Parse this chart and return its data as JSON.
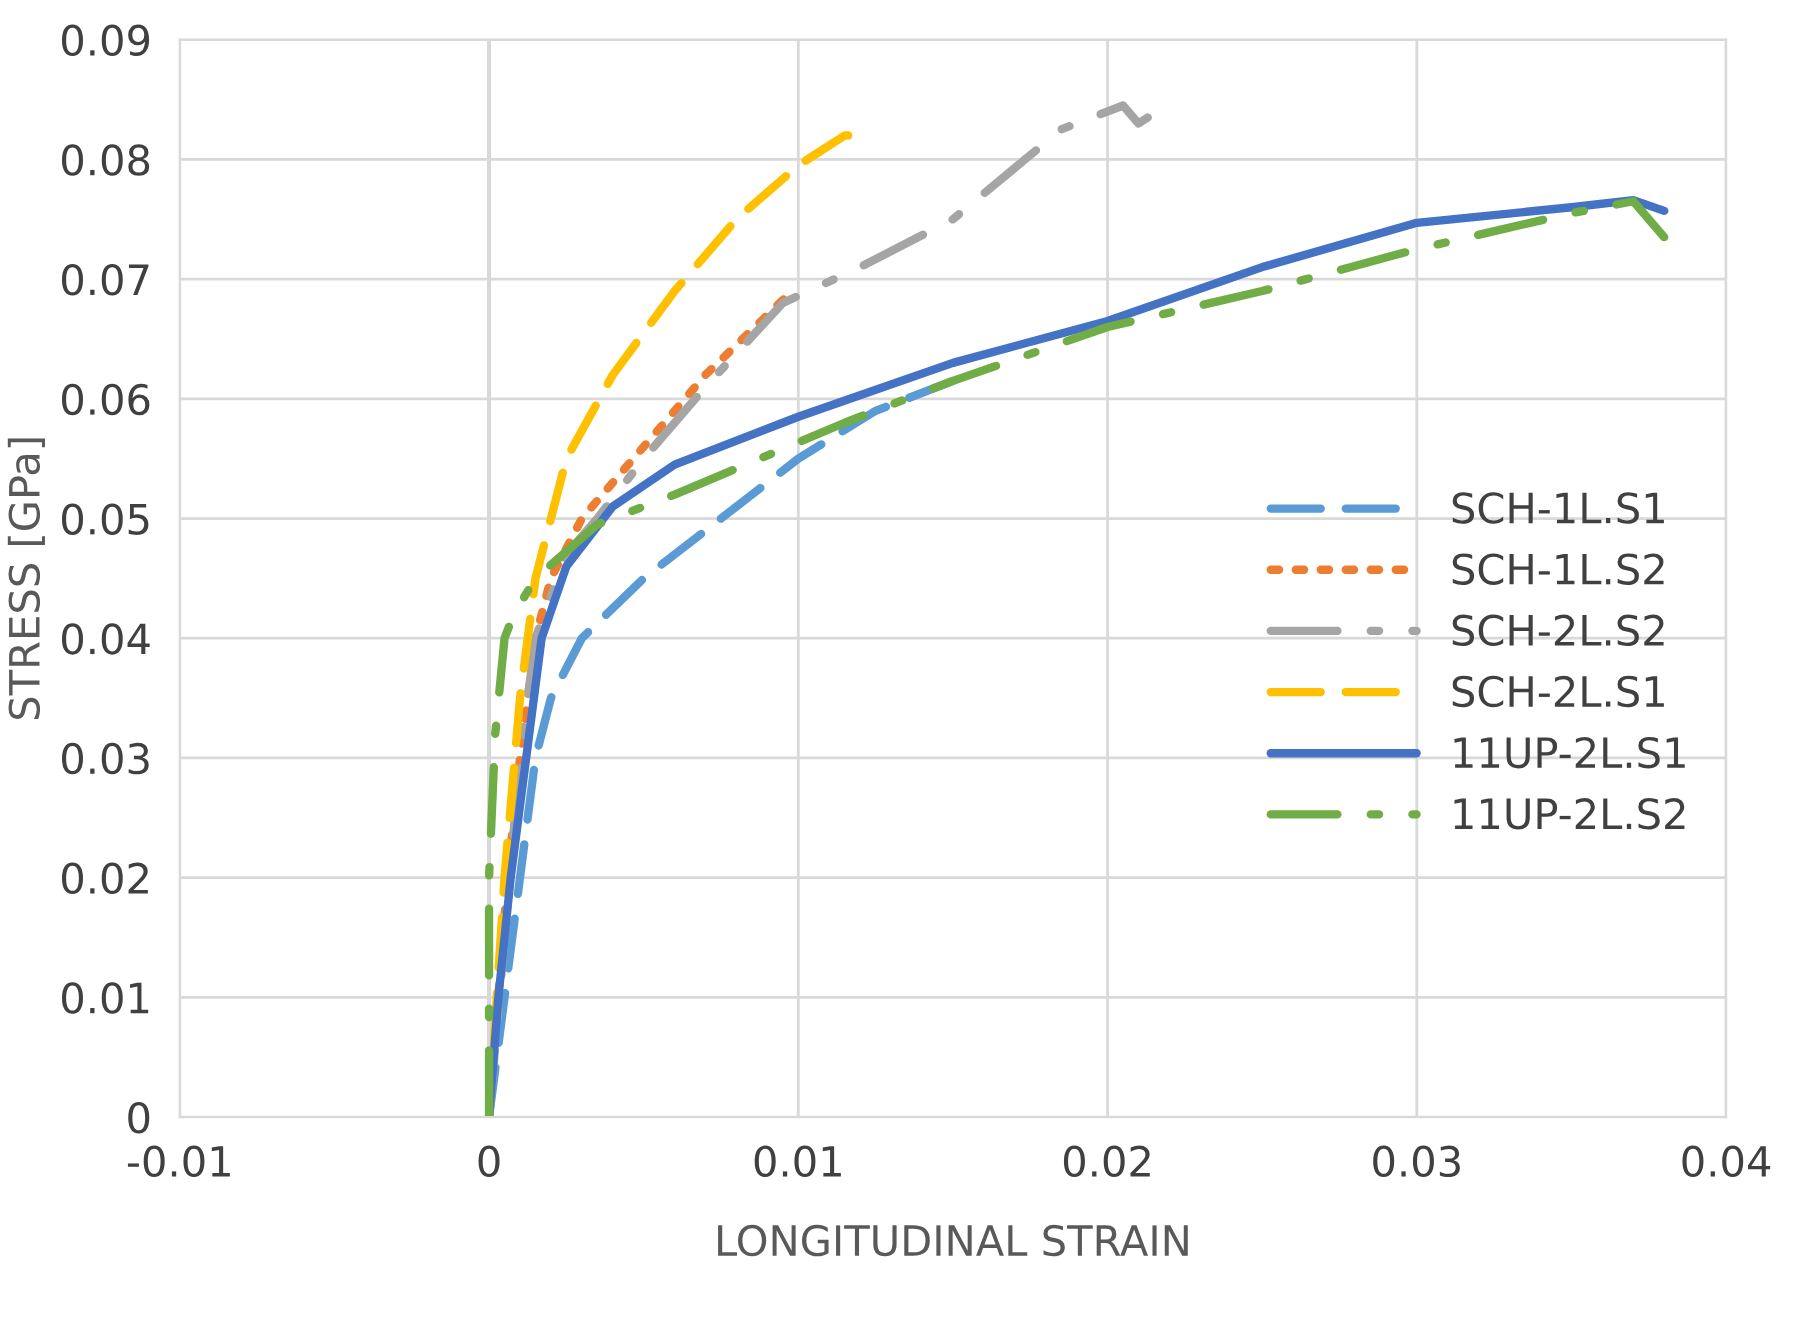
{
  "chart_data": {
    "type": "line",
    "xlabel": "LONGITUDINAL STRAIN",
    "ylabel": "STRESS [GPa]",
    "xlim": [
      -0.01,
      0.04
    ],
    "xticks": [
      -0.01,
      0,
      0.01,
      0.02,
      0.03,
      0.04
    ],
    "ylim": [
      0,
      0.09
    ],
    "yticks": [
      0,
      0.01,
      0.02,
      0.03,
      0.04,
      0.05,
      0.06,
      0.07,
      0.08,
      0.09
    ],
    "grid": true,
    "legend": "right",
    "marker": "none",
    "series": [
      {
        "name": "SCH-1L.S1",
        "color": "#5b9bd5",
        "line_style": "dashed",
        "x": [
          0,
          0.0005,
          0.001,
          0.0015,
          0.002,
          0.003,
          0.005,
          0.0075,
          0.01,
          0.0125,
          0.015
        ],
        "values": [
          0,
          0.01,
          0.02,
          0.03,
          0.035,
          0.04,
          0.045,
          0.05,
          0.055,
          0.059,
          0.0615
        ]
      },
      {
        "name": "SCH-1L.S2",
        "color": "#ed7d31",
        "line_style": "dotted",
        "x": [
          0,
          0.0003,
          0.0006,
          0.001,
          0.0015,
          0.002,
          0.003,
          0.005,
          0.007,
          0.0098
        ],
        "values": [
          0,
          0.01,
          0.02,
          0.03,
          0.04,
          0.045,
          0.05,
          0.056,
          0.062,
          0.069
        ]
      },
      {
        "name": "SCH-2L.S2",
        "color": "#a5a5a5",
        "line_style": "dashdot",
        "x": [
          0,
          0.0005,
          0.001,
          0.0015,
          0.0025,
          0.0035,
          0.005,
          0.007,
          0.0095,
          0.012,
          0.015,
          0.0185,
          0.0205,
          0.021,
          0.0213
        ],
        "values": [
          0,
          0.015,
          0.03,
          0.04,
          0.047,
          0.05,
          0.055,
          0.061,
          0.068,
          0.071,
          0.075,
          0.0825,
          0.0845,
          0.083,
          0.0835
        ]
      },
      {
        "name": "SCH-2L.S1",
        "color": "#ffc000",
        "line_style": "dashed",
        "x": [
          0,
          0.0005,
          0.001,
          0.0015,
          0.0025,
          0.004,
          0.006,
          0.008,
          0.01,
          0.0115,
          0.012
        ],
        "values": [
          0,
          0.02,
          0.035,
          0.045,
          0.055,
          0.062,
          0.069,
          0.075,
          0.0795,
          0.082,
          0.082
        ]
      },
      {
        "name": "11UP-2L.S1",
        "color": "#4472c4",
        "line_style": "solid",
        "x": [
          0,
          0.0003,
          0.0007,
          0.0012,
          0.0017,
          0.0025,
          0.004,
          0.006,
          0.01,
          0.015,
          0.02,
          0.025,
          0.03,
          0.035,
          0.037,
          0.038
        ],
        "values": [
          0,
          0.01,
          0.02,
          0.03,
          0.04,
          0.046,
          0.051,
          0.0545,
          0.0585,
          0.063,
          0.0665,
          0.071,
          0.0747,
          0.076,
          0.0766,
          0.0757
        ]
      },
      {
        "name": "11UP-2L.S2",
        "color": "#70ad47",
        "line_style": "dashdot",
        "x": [
          0,
          0,
          0,
          0.0002,
          0.0005,
          0.0008,
          0.0015,
          0.0035,
          0.006,
          0.0115,
          0.015,
          0.02,
          0.025,
          0.03,
          0.035,
          0.037,
          0.038
        ],
        "values": [
          0,
          0.01,
          0.02,
          0.032,
          0.04,
          0.042,
          0.045,
          0.0495,
          0.052,
          0.058,
          0.0615,
          0.066,
          0.069,
          0.0725,
          0.0755,
          0.0765,
          0.0735
        ]
      }
    ]
  }
}
